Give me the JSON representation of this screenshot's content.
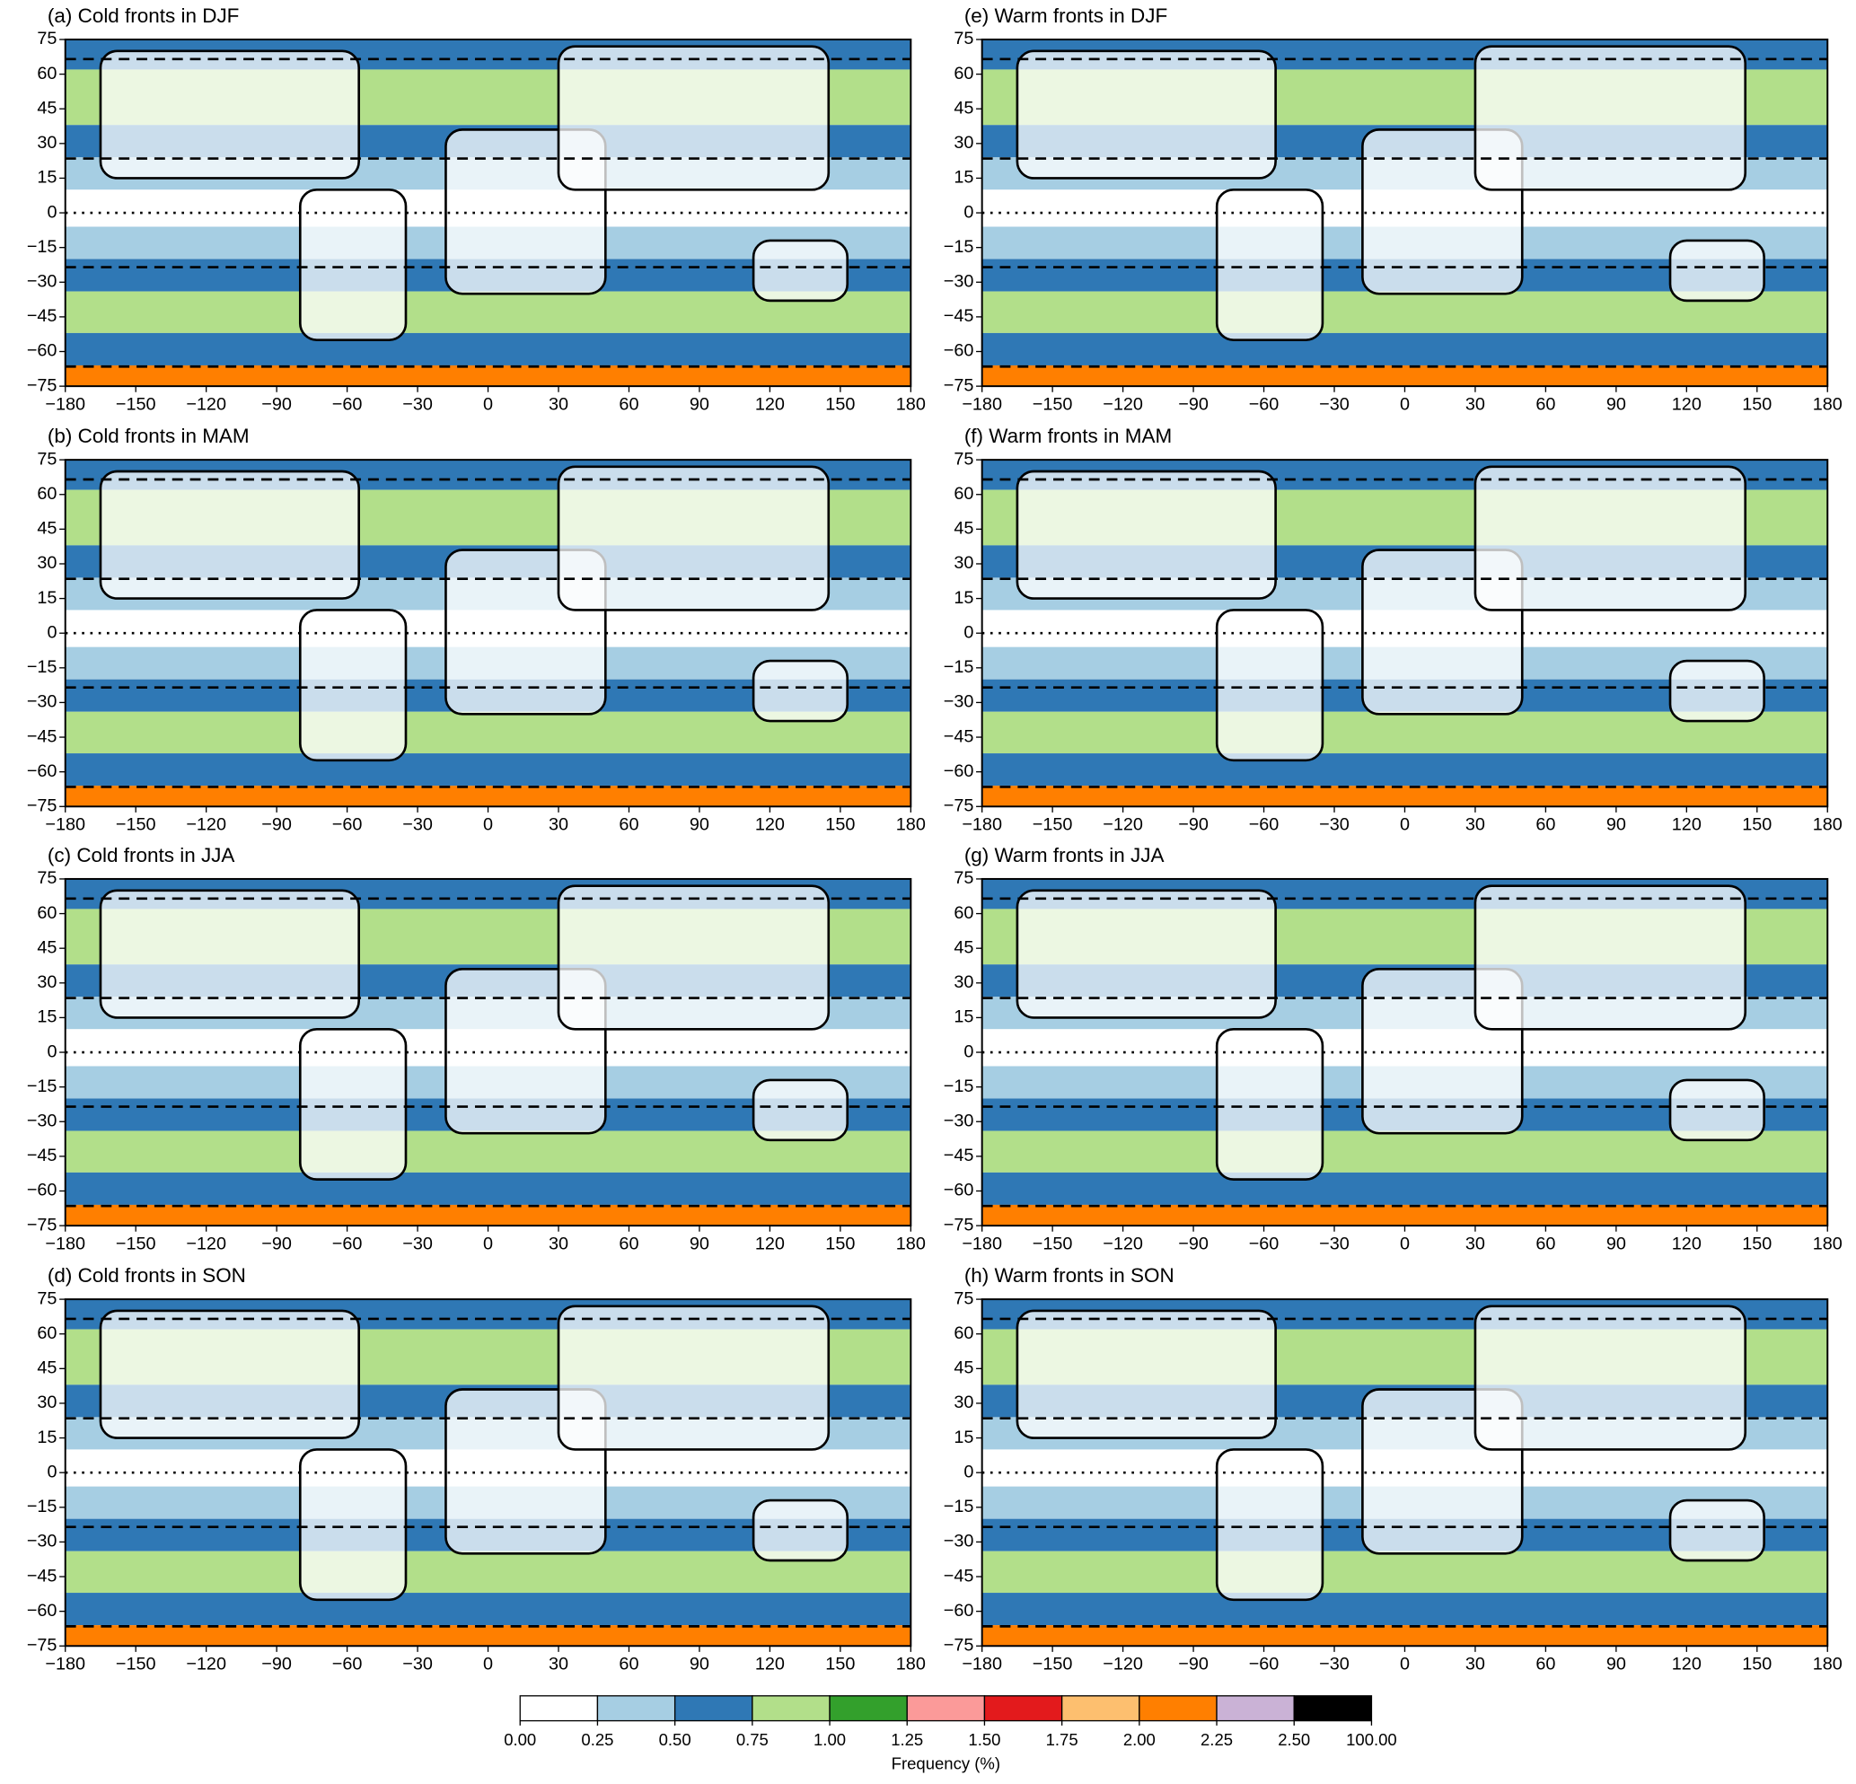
{
  "panels": [
    {
      "title": "(a) Cold fronts in DJF"
    },
    {
      "title": "(e) Warm fronts in DJF"
    },
    {
      "title": "(b) Cold fronts in MAM"
    },
    {
      "title": "(f) Warm fronts in MAM"
    },
    {
      "title": "(c) Cold fronts in JJA"
    },
    {
      "title": "(g) Warm fronts in JJA"
    },
    {
      "title": "(d) Cold fronts in SON"
    },
    {
      "title": "(h) Warm fronts in SON"
    }
  ],
  "axes": {
    "xlim": [
      -180,
      180
    ],
    "ylim": [
      -75,
      75
    ],
    "xticks": [
      {
        "value": -180,
        "label": "−180"
      },
      {
        "value": -150,
        "label": "−150"
      },
      {
        "value": -120,
        "label": "−120"
      },
      {
        "value": -90,
        "label": "−90"
      },
      {
        "value": -60,
        "label": "−60"
      },
      {
        "value": -30,
        "label": "−30"
      },
      0,
      30,
      60,
      90,
      120,
      150,
      180
    ],
    "yticks": [
      {
        "value": -75,
        "label": "−75"
      },
      {
        "value": -60,
        "label": "−60"
      },
      {
        "value": -45,
        "label": "−45"
      },
      {
        "value": -30,
        "label": "−30"
      },
      {
        "value": -15,
        "label": "−15"
      },
      0,
      15,
      30,
      45,
      60,
      75
    ]
  },
  "colorbar": {
    "label": "Frequency (%)",
    "ticks": [
      {
        "value": 0,
        "label": "0.00"
      },
      {
        "value": 0.25,
        "label": "0.25"
      },
      {
        "value": 0.5,
        "label": "0.50"
      },
      {
        "value": 0.75,
        "label": "0.75"
      },
      {
        "value": 1,
        "label": "1.00"
      },
      {
        "value": 1.25,
        "label": "1.25"
      },
      {
        "value": 1.5,
        "label": "1.50"
      },
      {
        "value": 1.75,
        "label": "1.75"
      },
      {
        "value": 2,
        "label": "2.00"
      },
      {
        "value": 2.25,
        "label": "2.25"
      },
      {
        "value": 2.5,
        "label": "2.50"
      },
      {
        "value": 100,
        "label": "100.00"
      }
    ],
    "colors": [
      "#ffffff",
      "#a6cee3",
      "#2f78b5",
      "#b2df8a",
      "#33a02c",
      "#fb9a99",
      "#e31a1c",
      "#fdbf6f",
      "#ff7f00",
      "#cab2d6",
      "#000000"
    ]
  }
}
